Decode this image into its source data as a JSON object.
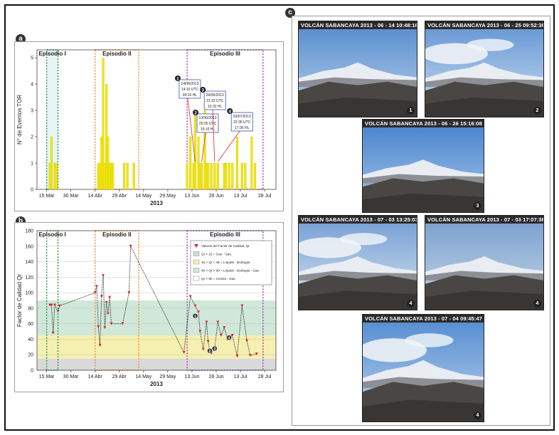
{
  "panels": {
    "a": {
      "letter": "a",
      "ylabel": "N° de Eventos TOR",
      "xlabel": "2013",
      "episodes": [
        "Episodio I",
        "Episodio II",
        "Episodio III"
      ],
      "annotations": [
        {
          "num": "1",
          "lines": [
            "14/08/2013",
            "14:10 UTC",
            "09:10 HL"
          ]
        },
        {
          "num": "2",
          "lines": [
            "13/06/2013",
            "20:26 UTC",
            "15:16 HL"
          ]
        },
        {
          "num": "3",
          "lines": [
            "26/06/2013",
            "21:32 UTC",
            "16:32 HL"
          ]
        },
        {
          "num": "4",
          "lines": [
            "03/07/2013",
            "22:36 UTC",
            "17:36 HL"
          ]
        }
      ]
    },
    "b": {
      "letter": "b",
      "ylabel": "Factor de Calidad Qr",
      "xlabel": "2013",
      "episodes": [
        "Episodio I",
        "Episodio II",
        "Episodio III"
      ],
      "legend": [
        {
          "label": "Valores del Factor de Calidad, Qr",
          "color": "#d62828"
        },
        {
          "label": "Qr < 15 = Gas - Gas.",
          "color": "#d9d9d9"
        },
        {
          "label": "15 > Qr < 45 = Líquido - Burbujas.",
          "color": "#f6f0b0"
        },
        {
          "label": "46 > Qr < 90 = Líquido - Burbujas - Gas",
          "color": "#cfe8d9"
        },
        {
          "label": "Qr > 90 = Ceniza - Gas.",
          "color": "#ffffff"
        }
      ],
      "point_labels": [
        "1",
        "2",
        "3",
        "4"
      ]
    },
    "c": {
      "letter": "c",
      "photos": [
        {
          "caption": "VOLCÁN SABANCAYA 2013 - 06 - 14 10:48:16",
          "num": "1"
        },
        {
          "caption": "VOLCÁN SABANCAYA 2013 - 06 - 25 09:52:36",
          "num": "2"
        },
        {
          "caption": "VOLCÁN SABANCAYA 2013 - 06 - 26 15:16:08",
          "num": "3"
        },
        {
          "caption": "VOLCÁN SABANCAYA 2013 - 07 - 03 13:25:03",
          "num": "4"
        },
        {
          "caption": "VOLCÁN SABANCAYA 2013 - 07 - 03 17:07:36",
          "num": "4"
        },
        {
          "caption": "VOLCÁN SABANCAYA 2013 - 07 - 04 09:45:47",
          "num": "4"
        }
      ]
    }
  },
  "chart_data": [
    {
      "type": "bar",
      "ylabel": "N° de Eventos TOR",
      "xlabel": "2013",
      "x_tick_labels": [
        "15 Mar",
        "30 Mar",
        "14 Abr",
        "29 Abr",
        "14 May",
        "29 May",
        "13 Jun",
        "28 Jun",
        "13 Jul",
        "28 Jul"
      ],
      "x_tick_days": [
        0,
        15,
        30,
        45,
        60,
        75,
        90,
        105,
        120,
        135
      ],
      "xlim": [
        -6,
        142
      ],
      "y_ticks": [
        0,
        1,
        2,
        3,
        4,
        5
      ],
      "ylim": [
        0,
        5.3
      ],
      "bars": [
        {
          "day": 2,
          "value": 1
        },
        {
          "day": 3,
          "value": 2
        },
        {
          "day": 5,
          "value": 1
        },
        {
          "day": 6,
          "value": 1
        },
        {
          "day": 32,
          "value": 1
        },
        {
          "day": 33,
          "value": 1
        },
        {
          "day": 34,
          "value": 2
        },
        {
          "day": 35,
          "value": 5
        },
        {
          "day": 36,
          "value": 1
        },
        {
          "day": 37,
          "value": 4
        },
        {
          "day": 38,
          "value": 2
        },
        {
          "day": 39,
          "value": 1
        },
        {
          "day": 40,
          "value": 1
        },
        {
          "day": 41,
          "value": 1
        },
        {
          "day": 48,
          "value": 1
        },
        {
          "day": 50,
          "value": 1
        },
        {
          "day": 54,
          "value": 1
        },
        {
          "day": 87,
          "value": 1
        },
        {
          "day": 89,
          "value": 2
        },
        {
          "day": 91,
          "value": 1
        },
        {
          "day": 92,
          "value": 3
        },
        {
          "day": 94,
          "value": 2
        },
        {
          "day": 95,
          "value": 1
        },
        {
          "day": 96,
          "value": 1
        },
        {
          "day": 98,
          "value": 3
        },
        {
          "day": 99,
          "value": 1
        },
        {
          "day": 100,
          "value": 1
        },
        {
          "day": 102,
          "value": 1
        },
        {
          "day": 104,
          "value": 1
        },
        {
          "day": 106,
          "value": 1
        },
        {
          "day": 110,
          "value": 1
        },
        {
          "day": 111,
          "value": 1
        },
        {
          "day": 113,
          "value": 1
        },
        {
          "day": 115,
          "value": 1
        },
        {
          "day": 118,
          "value": 2
        },
        {
          "day": 121,
          "value": 1
        },
        {
          "day": 123,
          "value": 1
        },
        {
          "day": 127,
          "value": 2
        },
        {
          "day": 129,
          "value": 1
        }
      ],
      "episode_ranges": [
        [
          0,
          7
        ],
        [
          30,
          57
        ],
        [
          87,
          134
        ]
      ]
    },
    {
      "type": "scatter",
      "ylabel": "Factor de Calidad Qr",
      "xlabel": "2013",
      "x_tick_labels": [
        "15 Mar",
        "30 Mar",
        "14 Abr",
        "29 Abr",
        "14 May",
        "29 May",
        "13 Jun",
        "28 Jun",
        "13 Jul",
        "28 Jul"
      ],
      "x_tick_days": [
        0,
        15,
        30,
        45,
        60,
        75,
        90,
        105,
        120,
        135
      ],
      "xlim": [
        -6,
        142
      ],
      "y_ticks": [
        0,
        20,
        40,
        60,
        80,
        100,
        120,
        140,
        160,
        180
      ],
      "ylim": [
        0,
        180
      ],
      "bands": [
        {
          "from": 0,
          "to": 15,
          "color": "#d9d9d9"
        },
        {
          "from": 15,
          "to": 45,
          "color": "#f6f0b0"
        },
        {
          "from": 45,
          "to": 90,
          "color": "#cfe8d9"
        }
      ],
      "points": [
        {
          "day": 2,
          "qr": 84
        },
        {
          "day": 3,
          "qr": 84
        },
        {
          "day": 4,
          "qr": 48
        },
        {
          "day": 5,
          "qr": 84
        },
        {
          "day": 7,
          "qr": 76
        },
        {
          "day": 8,
          "qr": 83
        },
        {
          "day": 30,
          "qr": 100
        },
        {
          "day": 31,
          "qr": 108
        },
        {
          "day": 32,
          "qr": 56
        },
        {
          "day": 33,
          "qr": 32
        },
        {
          "day": 34,
          "qr": 95
        },
        {
          "day": 35,
          "qr": 122
        },
        {
          "day": 36,
          "qr": 55
        },
        {
          "day": 37,
          "qr": 87
        },
        {
          "day": 38,
          "qr": 73
        },
        {
          "day": 39,
          "qr": 94
        },
        {
          "day": 40,
          "qr": 60
        },
        {
          "day": 47,
          "qr": 60
        },
        {
          "day": 51,
          "qr": 100
        },
        {
          "day": 52,
          "qr": 160
        },
        {
          "day": 85,
          "qr": 23
        },
        {
          "day": 89,
          "qr": 95
        },
        {
          "day": 92,
          "qr": 83
        },
        {
          "day": 94,
          "qr": 75
        },
        {
          "day": 95,
          "qr": 50
        },
        {
          "day": 97,
          "qr": 27
        },
        {
          "day": 99,
          "qr": 62
        },
        {
          "day": 100,
          "qr": 37
        },
        {
          "day": 101,
          "qr": 25
        },
        {
          "day": 102,
          "qr": 22
        },
        {
          "day": 104,
          "qr": 28
        },
        {
          "day": 106,
          "qr": 62
        },
        {
          "day": 108,
          "qr": 45
        },
        {
          "day": 110,
          "qr": 55
        },
        {
          "day": 112,
          "qr": 40
        },
        {
          "day": 115,
          "qr": 45
        },
        {
          "day": 118,
          "qr": 18
        },
        {
          "day": 121,
          "qr": 83
        },
        {
          "day": 124,
          "qr": 38
        },
        {
          "day": 126,
          "qr": 19
        },
        {
          "day": 130,
          "qr": 21
        }
      ],
      "labeled_points": [
        {
          "label": "1",
          "day": 92,
          "qr": 70
        },
        {
          "label": "2",
          "day": 101,
          "qr": 25
        },
        {
          "label": "3",
          "day": 104,
          "qr": 28
        },
        {
          "label": "4",
          "day": 113,
          "qr": 42
        }
      ],
      "episode_ranges": [
        [
          0,
          7
        ],
        [
          30,
          57
        ],
        [
          87,
          134
        ]
      ]
    }
  ]
}
